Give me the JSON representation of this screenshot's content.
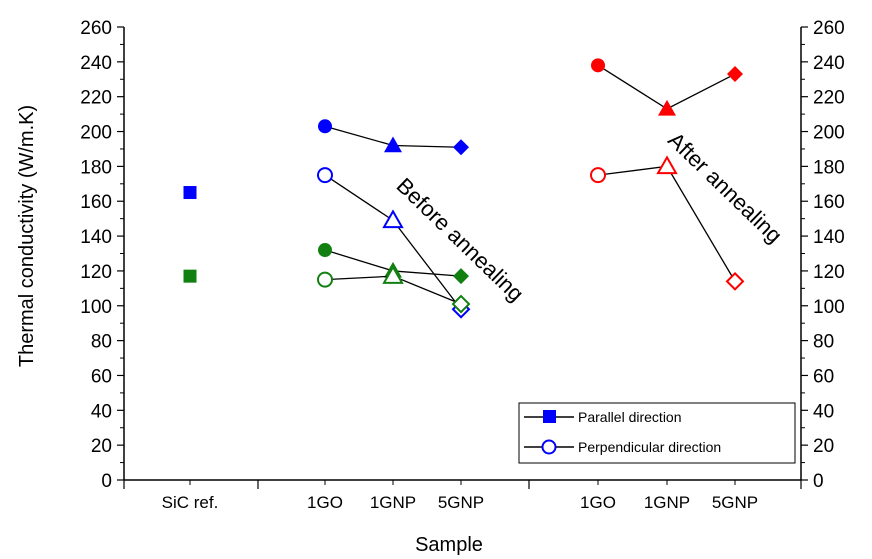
{
  "chart_data": {
    "type": "scatter",
    "title": "",
    "xlabel": "Sample",
    "ylabel": "Thermal conductivity (W/m.K)",
    "ylim": [
      0,
      260
    ],
    "y_ticks": [
      0,
      20,
      40,
      60,
      80,
      100,
      120,
      140,
      160,
      180,
      200,
      220,
      240,
      260
    ],
    "right_axis_ticks": [
      0,
      20,
      40,
      60,
      80,
      100,
      120,
      140,
      160,
      180,
      200,
      220,
      240,
      260
    ],
    "categories": [
      "SiC ref.",
      "1GO",
      "1GNP",
      "5GNP",
      "1GO",
      "1GNP",
      "5GNP"
    ],
    "grid": false,
    "legend_position": "bottom-right",
    "legend": [
      {
        "label": "Parallel direction",
        "marker": "filled-square"
      },
      {
        "label": "Perpendicular direction",
        "marker": "open-circle"
      }
    ],
    "annotations": [
      "Before annealing",
      "After annealing"
    ],
    "colors": {
      "blue": "#0000ff",
      "green": "#118011",
      "red": "#ff0000",
      "line": "#000000"
    },
    "series": [
      {
        "color": "blue",
        "direction": "parallel",
        "filled": true,
        "connected": false,
        "points": [
          {
            "x": "SiC ref.",
            "y": 165,
            "marker": "square"
          }
        ]
      },
      {
        "color": "green",
        "direction": "perpendicular",
        "filled": true,
        "connected": false,
        "points": [
          {
            "x": "SiC ref.",
            "y": 117,
            "marker": "square"
          }
        ]
      },
      {
        "color": "blue",
        "direction": "parallel",
        "filled": true,
        "connected": true,
        "points": [
          {
            "x": "1GO",
            "y": 203,
            "marker": "circle"
          },
          {
            "x": "1GNP",
            "y": 192,
            "marker": "triangle"
          },
          {
            "x": "5GNP",
            "y": 191,
            "marker": "diamond"
          }
        ]
      },
      {
        "color": "blue",
        "direction": "perpendicular",
        "filled": false,
        "connected": true,
        "points": [
          {
            "x": "1GO",
            "y": 175,
            "marker": "circle"
          },
          {
            "x": "1GNP",
            "y": 149,
            "marker": "triangle"
          },
          {
            "x": "5GNP",
            "y": 98,
            "marker": "diamond"
          }
        ]
      },
      {
        "color": "green",
        "direction": "parallel",
        "filled": true,
        "connected": true,
        "points": [
          {
            "x": "1GO",
            "y": 132,
            "marker": "circle"
          },
          {
            "x": "1GNP",
            "y": 120,
            "marker": "triangle"
          },
          {
            "x": "5GNP",
            "y": 117,
            "marker": "diamond"
          }
        ]
      },
      {
        "color": "green",
        "direction": "perpendicular",
        "filled": false,
        "connected": true,
        "points": [
          {
            "x": "1GO",
            "y": 115,
            "marker": "circle"
          },
          {
            "x": "1GNP",
            "y": 117,
            "marker": "triangle"
          },
          {
            "x": "5GNP",
            "y": 101,
            "marker": "diamond"
          }
        ]
      },
      {
        "color": "red",
        "direction": "parallel",
        "filled": true,
        "connected": true,
        "points": [
          {
            "x": "1GO",
            "y": 238,
            "marker": "circle"
          },
          {
            "x": "1GNP",
            "y": 213,
            "marker": "triangle"
          },
          {
            "x": "5GNP",
            "y": 233,
            "marker": "diamond"
          }
        ]
      },
      {
        "color": "red",
        "direction": "perpendicular",
        "filled": false,
        "connected": true,
        "points": [
          {
            "x": "1GO",
            "y": 175,
            "marker": "circle"
          },
          {
            "x": "1GNP",
            "y": 180,
            "marker": "triangle"
          },
          {
            "x": "5GNP",
            "y": 114,
            "marker": "diamond"
          }
        ]
      }
    ]
  }
}
